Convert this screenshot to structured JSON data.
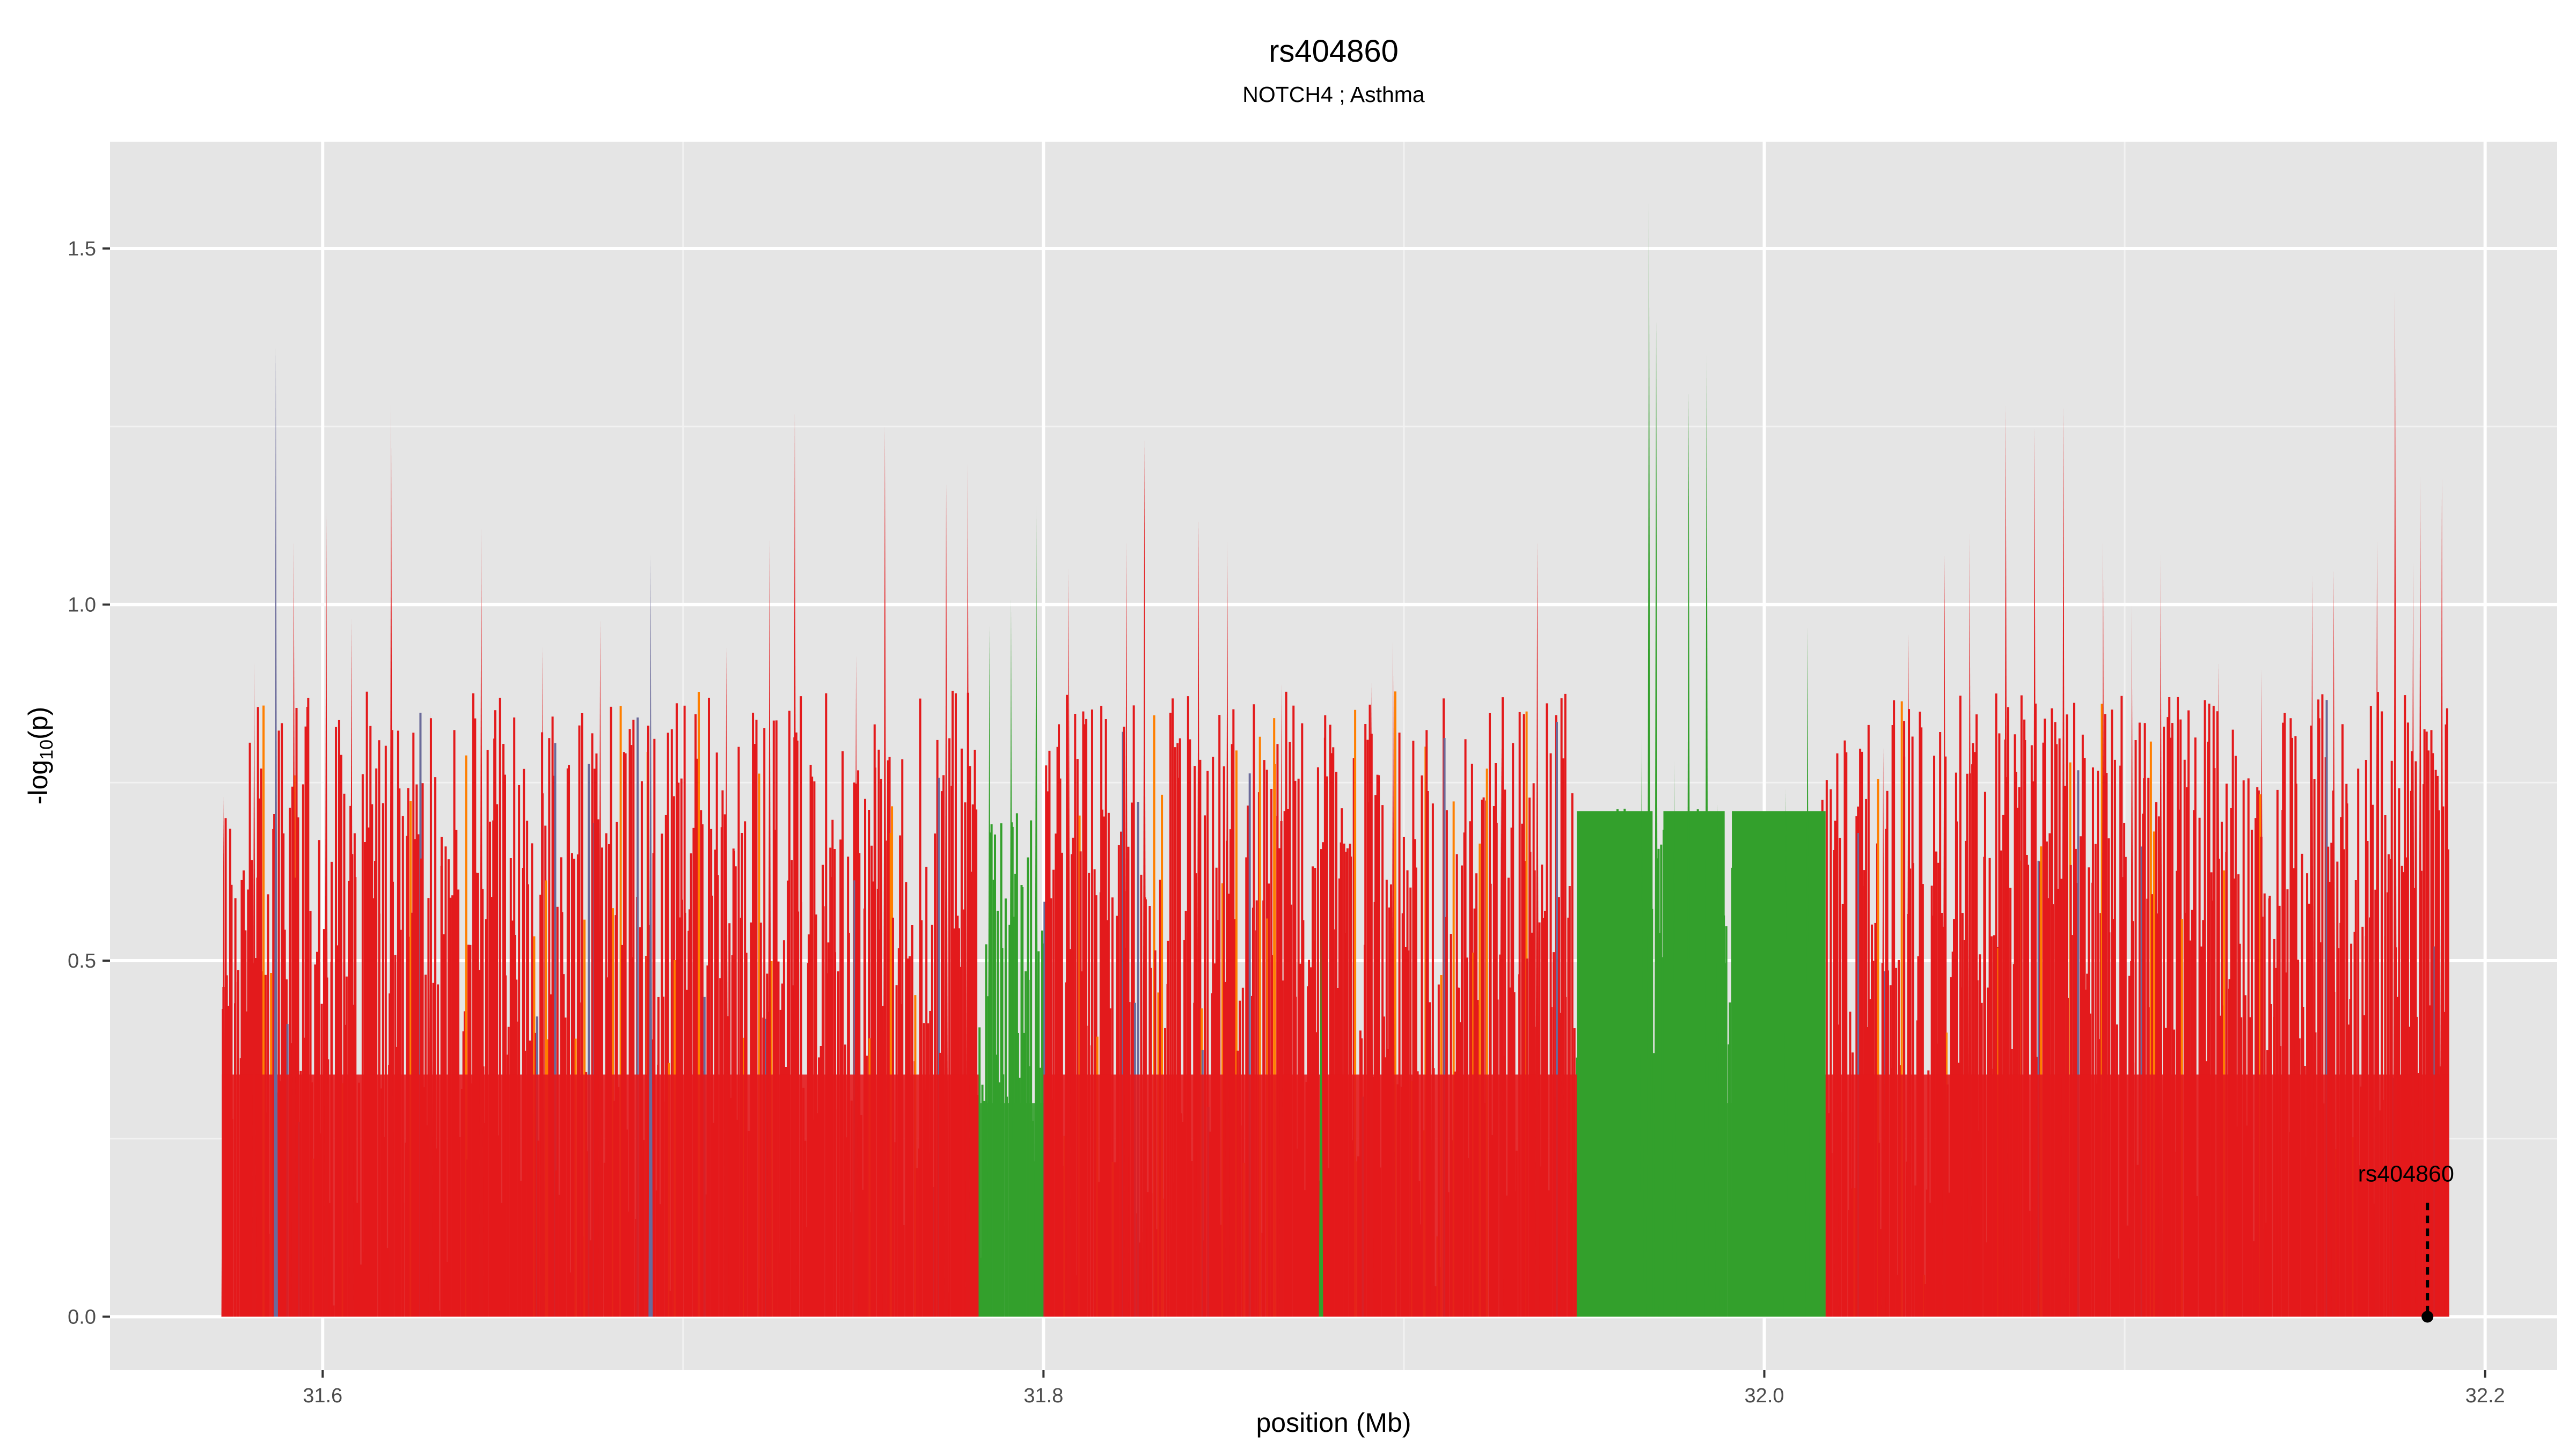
{
  "chart_data": {
    "type": "area",
    "title": "rs404860",
    "subtitle": "NOTCH4 ; Asthma",
    "xlabel": "position (Mb)",
    "ylabel": "-log10(p)",
    "ylabel_parts": {
      "prefix": "-log",
      "subscript": "10",
      "suffix": "(p)"
    },
    "xlim": [
      31.541,
      32.22
    ],
    "ylim": [
      -0.075,
      1.65
    ],
    "x_ticks": [
      31.6,
      31.8,
      32.0,
      32.2
    ],
    "x_tick_labels": [
      "31.6",
      "31.8",
      "32.0",
      "32.2"
    ],
    "y_ticks": [
      0.0,
      0.5,
      1.0,
      1.5
    ],
    "y_tick_labels": [
      "0.0",
      "0.5",
      "1.0",
      "1.5"
    ],
    "grid": true,
    "panel_background": "#e5e5e5",
    "grid_color": "#ffffff",
    "colors": {
      "red": "#e31a1c",
      "green": "#33a02c",
      "orange": "#ff7f00",
      "slate": "#6a6a9a"
    },
    "segments": [
      {
        "name": "red",
        "color": "#e31a1c",
        "x_start": 31.572,
        "x_end": 31.782
      },
      {
        "name": "green",
        "color": "#33a02c",
        "x_start": 31.782,
        "x_end": 31.8
      },
      {
        "name": "red",
        "color": "#e31a1c",
        "x_start": 31.8,
        "x_end": 31.948
      },
      {
        "name": "green",
        "color": "#33a02c",
        "x_start": 31.948,
        "x_end": 32.016
      },
      {
        "name": "red",
        "color": "#e31a1c",
        "x_start": 32.016,
        "x_end": 32.19
      }
    ],
    "green_plateaus": [
      {
        "x_start": 31.948,
        "x_end": 31.969,
        "value": 0.71
      },
      {
        "x_start": 31.972,
        "x_end": 31.989,
        "value": 0.71
      },
      {
        "x_start": 31.991,
        "x_end": 32.017,
        "value": 0.71
      }
    ],
    "peaks": [
      {
        "x": 31.5725,
        "value": 0.73,
        "color": "#e31a1c"
      },
      {
        "x": 31.581,
        "value": 0.92,
        "color": "#e31a1c"
      },
      {
        "x": 31.587,
        "value": 1.36,
        "color": "#6a6a9a"
      },
      {
        "x": 31.592,
        "value": 1.09,
        "color": "#e31a1c"
      },
      {
        "x": 31.601,
        "value": 1.14,
        "color": "#e31a1c"
      },
      {
        "x": 31.608,
        "value": 0.98,
        "color": "#e31a1c"
      },
      {
        "x": 31.619,
        "value": 1.28,
        "color": "#e31a1c"
      },
      {
        "x": 31.63,
        "value": 0.85,
        "color": "#e31a1c"
      },
      {
        "x": 31.644,
        "value": 1.11,
        "color": "#e31a1c"
      },
      {
        "x": 31.661,
        "value": 0.94,
        "color": "#e31a1c"
      },
      {
        "x": 31.677,
        "value": 0.98,
        "color": "#e31a1c"
      },
      {
        "x": 31.691,
        "value": 1.07,
        "color": "#6a6a9a"
      },
      {
        "x": 31.712,
        "value": 0.94,
        "color": "#e31a1c"
      },
      {
        "x": 31.724,
        "value": 1.09,
        "color": "#e31a1c"
      },
      {
        "x": 31.731,
        "value": 1.27,
        "color": "#e31a1c"
      },
      {
        "x": 31.748,
        "value": 0.93,
        "color": "#e31a1c"
      },
      {
        "x": 31.756,
        "value": 1.25,
        "color": "#e31a1c"
      },
      {
        "x": 31.773,
        "value": 1.17,
        "color": "#e31a1c"
      },
      {
        "x": 31.779,
        "value": 1.2,
        "color": "#e31a1c"
      },
      {
        "x": 31.785,
        "value": 0.97,
        "color": "#33a02c"
      },
      {
        "x": 31.791,
        "value": 1.01,
        "color": "#33a02c"
      },
      {
        "x": 31.798,
        "value": 1.14,
        "color": "#33a02c"
      },
      {
        "x": 31.807,
        "value": 1.05,
        "color": "#e31a1c"
      },
      {
        "x": 31.823,
        "value": 1.09,
        "color": "#e31a1c"
      },
      {
        "x": 31.828,
        "value": 1.23,
        "color": "#e31a1c"
      },
      {
        "x": 31.843,
        "value": 1.12,
        "color": "#e31a1c"
      },
      {
        "x": 31.851,
        "value": 1.09,
        "color": "#e31a1c"
      },
      {
        "x": 31.866,
        "value": 0.89,
        "color": "#e31a1c"
      },
      {
        "x": 31.877,
        "value": 0.62,
        "color": "#33a02c"
      },
      {
        "x": 31.891,
        "value": 0.89,
        "color": "#e31a1c"
      },
      {
        "x": 31.897,
        "value": 0.95,
        "color": "#e31a1c"
      },
      {
        "x": 31.908,
        "value": 0.71,
        "color": "#e31a1c"
      },
      {
        "x": 31.927,
        "value": 0.8,
        "color": "#e31a1c"
      },
      {
        "x": 31.937,
        "value": 1.09,
        "color": "#e31a1c"
      },
      {
        "x": 31.944,
        "value": 0.74,
        "color": "#e31a1c"
      },
      {
        "x": 31.966,
        "value": 0.82,
        "color": "#33a02c"
      },
      {
        "x": 31.968,
        "value": 1.57,
        "color": "#33a02c"
      },
      {
        "x": 31.97,
        "value": 1.4,
        "color": "#33a02c"
      },
      {
        "x": 31.975,
        "value": 0.78,
        "color": "#33a02c"
      },
      {
        "x": 31.979,
        "value": 1.3,
        "color": "#33a02c"
      },
      {
        "x": 31.984,
        "value": 1.35,
        "color": "#33a02c"
      },
      {
        "x": 31.987,
        "value": 0.72,
        "color": "#33a02c"
      },
      {
        "x": 32.006,
        "value": 0.74,
        "color": "#33a02c"
      },
      {
        "x": 32.012,
        "value": 0.97,
        "color": "#33a02c"
      },
      {
        "x": 32.02,
        "value": 0.76,
        "color": "#e31a1c"
      },
      {
        "x": 32.033,
        "value": 0.8,
        "color": "#e31a1c"
      },
      {
        "x": 32.04,
        "value": 0.96,
        "color": "#e31a1c"
      },
      {
        "x": 32.05,
        "value": 1.07,
        "color": "#e31a1c"
      },
      {
        "x": 32.057,
        "value": 1.1,
        "color": "#e31a1c"
      },
      {
        "x": 32.067,
        "value": 1.28,
        "color": "#e31a1c"
      },
      {
        "x": 32.075,
        "value": 1.25,
        "color": "#e31a1c"
      },
      {
        "x": 32.083,
        "value": 1.28,
        "color": "#e31a1c"
      },
      {
        "x": 32.094,
        "value": 1.09,
        "color": "#e31a1c"
      },
      {
        "x": 32.102,
        "value": 1.0,
        "color": "#e31a1c"
      },
      {
        "x": 32.11,
        "value": 1.07,
        "color": "#e31a1c"
      },
      {
        "x": 32.126,
        "value": 0.92,
        "color": "#e31a1c"
      },
      {
        "x": 32.138,
        "value": 0.91,
        "color": "#e31a1c"
      },
      {
        "x": 32.152,
        "value": 1.04,
        "color": "#e31a1c"
      },
      {
        "x": 32.158,
        "value": 1.05,
        "color": "#e31a1c"
      },
      {
        "x": 32.17,
        "value": 1.09,
        "color": "#e31a1c"
      },
      {
        "x": 32.175,
        "value": 1.44,
        "color": "#e31a1c"
      },
      {
        "x": 32.18,
        "value": 1.06,
        "color": "#e31a1c"
      },
      {
        "x": 32.182,
        "value": 1.18,
        "color": "#e31a1c"
      },
      {
        "x": 32.188,
        "value": 1.18,
        "color": "#e31a1c"
      }
    ],
    "annotation": {
      "label": "rs404860",
      "x": 32.184,
      "value": 0.0
    }
  }
}
